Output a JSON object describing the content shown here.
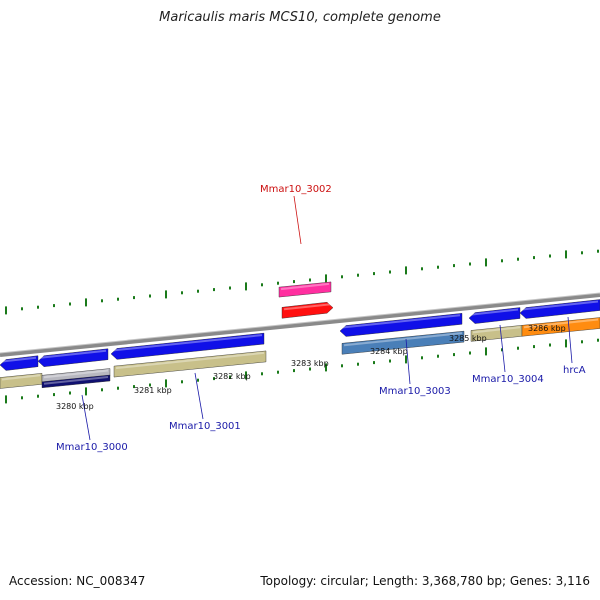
{
  "title": "Maricaulis maris MCS10, complete genome",
  "footer": {
    "accession": "Accession: NC_008347",
    "summary": "Topology: circular; Length: 3,368,780 bp; Genes: 3,116"
  },
  "colors": {
    "backbone": "#8a8a8a",
    "cds_forward": "#1010e8",
    "cds_reverse": "#1010e8",
    "gene_khaki": "#c8c08a",
    "rna_pink": "#ff2fa0",
    "rna_red": "#ff1010",
    "cds_steelblue": "#4a7fb8",
    "cds_orange": "#ff8c10",
    "cds_navy": "#101070",
    "tick_green": "#1a7a1a",
    "label_blue": "#1a1aa8",
    "label_red": "#cc1010"
  },
  "ruler_labels": [
    "3280 kbp",
    "3281 kbp",
    "3282 kbp",
    "3283 kbp",
    "3284 kbp",
    "3285 kbp",
    "3286 kbp"
  ],
  "gene_labels": [
    {
      "text": "Mmar10_3000",
      "color": "#1a1aa8"
    },
    {
      "text": "Mmar10_3001",
      "color": "#1a1aa8"
    },
    {
      "text": "Mmar10_3002",
      "color": "#cc1010"
    },
    {
      "text": "Mmar10_3003",
      "color": "#1a1aa8"
    },
    {
      "text": "Mmar10_3004",
      "color": "#1a1aa8"
    },
    {
      "text": "hrcA",
      "color": "#1a1aa8"
    }
  ]
}
